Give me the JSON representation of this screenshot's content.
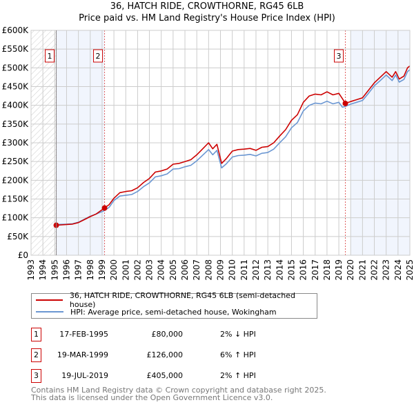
{
  "title_line1": "36, HATCH RIDE, CROWTHORNE, RG45 6LB",
  "title_line2": "Price paid vs. HM Land Registry's House Price Index (HPI)",
  "chart_data": {
    "type": "line",
    "title": "36, HATCH RIDE, CROWTHORNE, RG45 6LB — Price paid vs. HM Land Registry's House Price Index (HPI)",
    "xlim": [
      1993,
      2025
    ],
    "ylim": [
      0,
      600000
    ],
    "x_ticks": [
      "1993",
      "1994",
      "1995",
      "1996",
      "1997",
      "1998",
      "1999",
      "2000",
      "2001",
      "2002",
      "2003",
      "2004",
      "2005",
      "2006",
      "2007",
      "2008",
      "2009",
      "2010",
      "2011",
      "2012",
      "2013",
      "2014",
      "2015",
      "2016",
      "2017",
      "2018",
      "2019",
      "2020",
      "2021",
      "2022",
      "2023",
      "2024",
      "2025"
    ],
    "y_ticks": [
      {
        "value": 0,
        "label": "£0"
      },
      {
        "value": 50000,
        "label": "£50K"
      },
      {
        "value": 100000,
        "label": "£100K"
      },
      {
        "value": 150000,
        "label": "£150K"
      },
      {
        "value": 200000,
        "label": "£200K"
      },
      {
        "value": 250000,
        "label": "£250K"
      },
      {
        "value": 300000,
        "label": "£300K"
      },
      {
        "value": 350000,
        "label": "£350K"
      },
      {
        "value": 400000,
        "label": "£400K"
      },
      {
        "value": 450000,
        "label": "£450K"
      },
      {
        "value": 500000,
        "label": "£500K"
      },
      {
        "value": 550000,
        "label": "£550K"
      },
      {
        "value": 600000,
        "label": "£600K"
      }
    ],
    "grid": true,
    "shaded_ranges": [
      [
        1995.13,
        1999.21
      ],
      [
        2020.0,
        2025
      ]
    ],
    "hatched_range": [
      1993,
      1995.13
    ],
    "series": [
      {
        "name": "36, HATCH RIDE, CROWTHORNE, RG45 6LB (semi-detached house)",
        "color": "#cc0000",
        "x": [
          1995.13,
          1996,
          1996.5,
          1997,
          1997.5,
          1998,
          1998.5,
          1999.21,
          1999.6,
          2000,
          2000.5,
          2001,
          2001.5,
          2002,
          2002.5,
          2003,
          2003.5,
          2004,
          2004.5,
          2005,
          2005.5,
          2006,
          2006.5,
          2007,
          2007.5,
          2008,
          2008.35,
          2008.7,
          2009.1,
          2009.5,
          2010,
          2010.5,
          2011,
          2011.5,
          2012,
          2012.5,
          2013,
          2013.5,
          2014,
          2014.5,
          2015,
          2015.5,
          2016,
          2016.5,
          2017,
          2017.5,
          2018,
          2018.5,
          2019,
          2019.3,
          2019.55,
          2020,
          2020.5,
          2021,
          2021.5,
          2022,
          2022.5,
          2023,
          2023.5,
          2023.8,
          2024.1,
          2024.5,
          2024.8,
          2025
        ],
        "y": [
          80000,
          82000,
          83000,
          87000,
          95000,
          103000,
          110000,
          126000,
          135000,
          152000,
          167000,
          170000,
          172000,
          180000,
          194000,
          205000,
          222000,
          225000,
          230000,
          243000,
          245000,
          250000,
          255000,
          268000,
          284000,
          300000,
          284000,
          296000,
          245000,
          258000,
          278000,
          282000,
          283000,
          285000,
          280000,
          288000,
          290000,
          300000,
          318000,
          335000,
          360000,
          375000,
          408000,
          425000,
          430000,
          428000,
          436000,
          428000,
          432000,
          418000,
          405000,
          410000,
          415000,
          420000,
          440000,
          460000,
          475000,
          490000,
          475000,
          490000,
          470000,
          478000,
          500000,
          505000
        ]
      },
      {
        "name": "HPI: Average price, semi-detached house, Wokingham",
        "color": "#6a96d2",
        "x": [
          1995.13,
          1996,
          1996.5,
          1997,
          1997.5,
          1998,
          1998.5,
          1999.21,
          1999.6,
          2000,
          2000.5,
          2001,
          2001.5,
          2002,
          2002.5,
          2003,
          2003.5,
          2004,
          2004.5,
          2005,
          2005.5,
          2006,
          2006.5,
          2007,
          2007.5,
          2008,
          2008.35,
          2008.7,
          2009.1,
          2009.5,
          2010,
          2010.5,
          2011,
          2011.5,
          2012,
          2012.5,
          2013,
          2013.5,
          2014,
          2014.5,
          2015,
          2015.5,
          2016,
          2016.5,
          2017,
          2017.5,
          2018,
          2018.5,
          2019,
          2019.3,
          2019.55,
          2020,
          2020.5,
          2021,
          2021.5,
          2022,
          2022.5,
          2023,
          2023.5,
          2023.8,
          2024.1,
          2024.5,
          2024.8,
          2025
        ],
        "y": [
          82000,
          83000,
          84000,
          88000,
          96000,
          104000,
          110000,
          119000,
          128000,
          146000,
          158000,
          160000,
          162000,
          170000,
          183000,
          193000,
          209000,
          212000,
          217000,
          230000,
          231000,
          236000,
          240000,
          252000,
          267000,
          282000,
          268000,
          280000,
          233000,
          244000,
          262000,
          266000,
          267000,
          269000,
          265000,
          272000,
          274000,
          283000,
          300000,
          316000,
          340000,
          354000,
          385000,
          400000,
          406000,
          404000,
          411000,
          404000,
          408000,
          395000,
          397000,
          403000,
          408000,
          413000,
          432000,
          452000,
          466000,
          481000,
          466000,
          481000,
          462000,
          469000,
          490000,
          495000
        ]
      }
    ],
    "sales": [
      {
        "label": "1",
        "x": 1995.13,
        "y": 80000
      },
      {
        "label": "2",
        "x": 1999.21,
        "y": 126000
      },
      {
        "label": "3",
        "x": 2019.55,
        "y": 405000
      }
    ],
    "legend_position": "below"
  },
  "legend": {
    "property": "36, HATCH RIDE, CROWTHORNE, RG45 6LB (semi-detached house)",
    "hpi": "HPI: Average price, semi-detached house, Wokingham"
  },
  "table": [
    {
      "num": "1",
      "date": "17-FEB-1995",
      "price": "£80,000",
      "hpi": "2% ↓ HPI"
    },
    {
      "num": "2",
      "date": "19-MAR-1999",
      "price": "£126,000",
      "hpi": "6% ↑ HPI"
    },
    {
      "num": "3",
      "date": "19-JUL-2019",
      "price": "£405,000",
      "hpi": "2% ↑ HPI"
    }
  ],
  "footer": {
    "line1": "Contains HM Land Registry data © Crown copyright and database right 2025.",
    "line2": "This data is licensed under the Open Government Licence v3.0."
  }
}
